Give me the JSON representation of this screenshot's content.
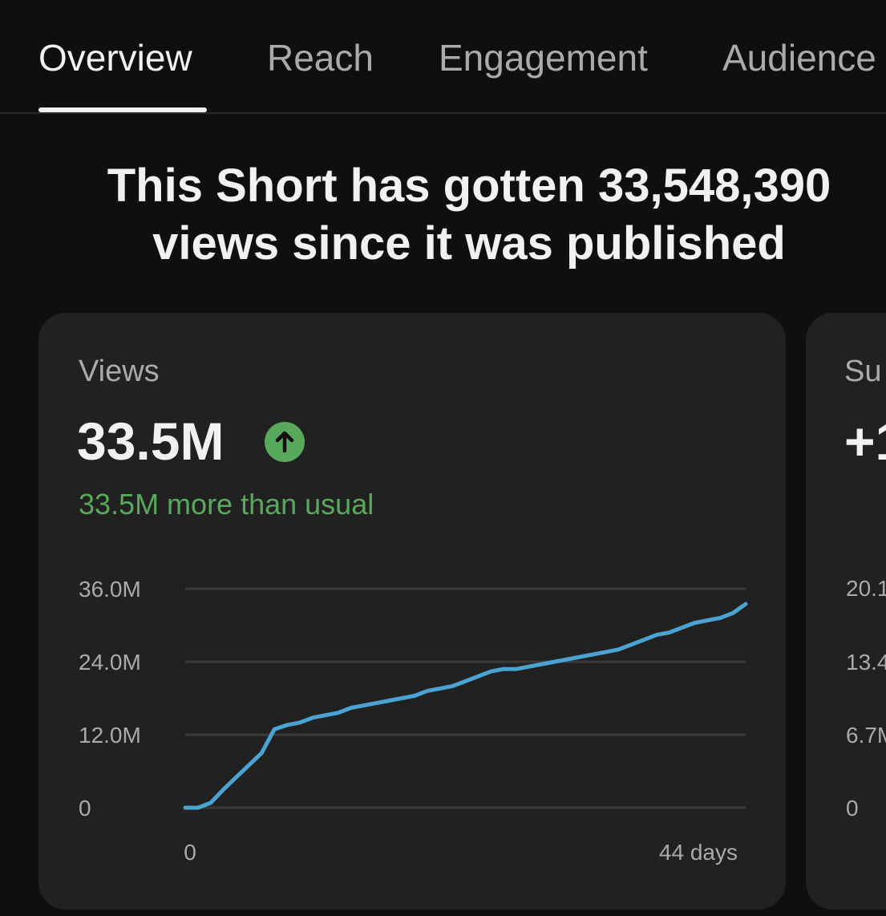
{
  "tabs": [
    {
      "label": "Overview",
      "active": true
    },
    {
      "label": "Reach",
      "active": false
    },
    {
      "label": "Engagement",
      "active": false
    },
    {
      "label": "Audience",
      "active": false
    }
  ],
  "headline": {
    "line1": "This Short has gotten 33,548,390",
    "line2": "views since it was published"
  },
  "views_card": {
    "label": "Views",
    "value": "33.5M",
    "trend_icon": "arrow-up-circle-icon",
    "subtext": "33.5M more than usual",
    "trend_color": "#58a95c"
  },
  "next_card": {
    "label": "Su",
    "value": "+1",
    "y_ticks": [
      "20.1",
      "13.4",
      "6.7M",
      "0"
    ]
  },
  "colors": {
    "background": "#0f0f0f",
    "card": "#212121",
    "line": "#4ba3d3",
    "positive": "#58a95c"
  },
  "chart_data": {
    "type": "line",
    "title": "Views",
    "xlabel": "",
    "ylabel": "",
    "x_tick_labels": [
      "0",
      "44 days"
    ],
    "y_tick_labels": [
      "36.0M",
      "24.0M",
      "12.0M",
      "0"
    ],
    "y_tick_values": [
      36,
      24,
      12,
      0
    ],
    "ylim": [
      0,
      36
    ],
    "xlim": [
      0,
      44
    ],
    "y_unit": "M",
    "grid": true,
    "series": [
      {
        "name": "Views",
        "x": [
          0,
          1,
          2,
          3,
          4,
          5,
          6,
          7,
          8,
          9,
          10,
          11,
          12,
          13,
          14,
          15,
          16,
          17,
          18,
          19,
          20,
          21,
          22,
          23,
          24,
          25,
          26,
          27,
          28,
          29,
          30,
          31,
          32,
          33,
          34,
          35,
          36,
          37,
          38,
          39,
          40,
          41,
          42,
          43,
          44
        ],
        "values": [
          0,
          0,
          0.8,
          3.0,
          5.0,
          7.0,
          9.0,
          12.9,
          13.6,
          14.0,
          14.8,
          15.2,
          15.6,
          16.4,
          16.8,
          17.2,
          17.6,
          18.0,
          18.4,
          19.2,
          19.6,
          20.0,
          20.8,
          21.6,
          22.4,
          22.8,
          22.8,
          23.2,
          23.6,
          24.0,
          24.4,
          24.8,
          25.2,
          25.6,
          26.0,
          26.8,
          27.6,
          28.4,
          28.8,
          29.6,
          30.4,
          30.8,
          31.2,
          32.0,
          33.5
        ]
      }
    ]
  }
}
